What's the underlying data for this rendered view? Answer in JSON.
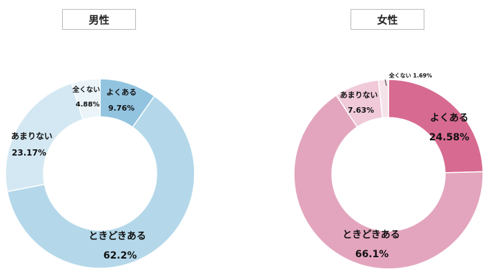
{
  "chart_data": [
    {
      "type": "pie",
      "title": "男性",
      "categories": [
        "よくある",
        "ときどきある",
        "あまりない",
        "全くない"
      ],
      "values": [
        9.76,
        62.2,
        23.17,
        4.88
      ],
      "value_labels": [
        "9.76%",
        "62.2%",
        "23.17%",
        "4.88%"
      ],
      "colors": [
        "#92c4e0",
        "#b4d8ea",
        "#d4e8f3",
        "#eaf4f9"
      ],
      "style": "donut",
      "start": "12 o'clock, clockwise"
    },
    {
      "type": "pie",
      "title": "女性",
      "categories": [
        "よくある",
        "ときどきある",
        "あまりない",
        "全くない"
      ],
      "values": [
        24.58,
        66.1,
        7.63,
        1.69
      ],
      "value_labels": [
        "24.58%",
        "66.1%",
        "7.63%",
        "1.69%"
      ],
      "colors": [
        "#d76a90",
        "#e3a5bd",
        "#f0cad9",
        "#f6e3ea"
      ],
      "style": "donut",
      "start": "12 o'clock, clockwise"
    }
  ]
}
